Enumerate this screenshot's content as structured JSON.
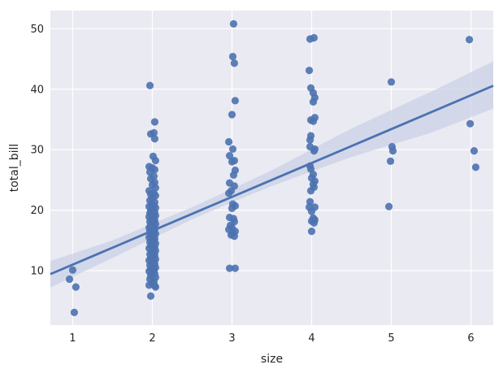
{
  "chart_data": {
    "type": "scatter",
    "title": "",
    "xlabel": "size",
    "ylabel": "total_bill",
    "xlim": [
      0.72,
      6.28
    ],
    "ylim": [
      1.0,
      53.0
    ],
    "x_ticks": [
      1,
      2,
      3,
      4,
      5,
      6
    ],
    "x_tick_labels": [
      "1",
      "2",
      "3",
      "4",
      "5",
      "6"
    ],
    "y_ticks": [
      10,
      20,
      30,
      40,
      50
    ],
    "y_tick_labels": [
      "10",
      "20",
      "30",
      "40",
      "50"
    ],
    "grid": true,
    "background": "#eaeaf2",
    "point_color": "#4c72b0",
    "line_color": "#4c72b0",
    "band_color": "#c9d2e5",
    "regression": {
      "slope": 5.6,
      "intercept": 5.4,
      "band_lower": [
        [
          0.72,
          7.2
        ],
        [
          1.5,
          12.1
        ],
        [
          2.5,
          18.5
        ],
        [
          3.0,
          21.3
        ],
        [
          3.5,
          24.0
        ],
        [
          4.5,
          28.8
        ],
        [
          5.5,
          32.8
        ],
        [
          6.28,
          36.8
        ]
      ],
      "band_upper": [
        [
          0.72,
          11.6
        ],
        [
          1.5,
          15.0
        ],
        [
          2.5,
          20.5
        ],
        [
          3.0,
          23.5
        ],
        [
          3.5,
          26.6
        ],
        [
          4.5,
          33.5
        ],
        [
          5.5,
          39.6
        ],
        [
          6.28,
          44.6
        ]
      ]
    },
    "points": [
      [
        0.96,
        8.6
      ],
      [
        1.0,
        10.1
      ],
      [
        1.02,
        3.1
      ],
      [
        1.04,
        7.3
      ],
      [
        1.97,
        40.6
      ],
      [
        2.03,
        34.6
      ],
      [
        1.98,
        32.6
      ],
      [
        2.02,
        32.8
      ],
      [
        2.03,
        31.8
      ],
      [
        2.01,
        28.9
      ],
      [
        2.04,
        28.2
      ],
      [
        1.96,
        27.2
      ],
      [
        2.0,
        27.0
      ],
      [
        2.03,
        26.7
      ],
      [
        1.97,
        26.3
      ],
      [
        2.02,
        25.6
      ],
      [
        1.98,
        25.2
      ],
      [
        2.03,
        24.6
      ],
      [
        2.0,
        24.2
      ],
      [
        2.04,
        23.7
      ],
      [
        1.96,
        23.2
      ],
      [
        2.02,
        22.8
      ],
      [
        1.98,
        22.6
      ],
      [
        2.04,
        22.4
      ],
      [
        2.0,
        22.0
      ],
      [
        1.97,
        21.6
      ],
      [
        2.03,
        21.3
      ],
      [
        1.99,
        21.0
      ],
      [
        2.02,
        20.8
      ],
      [
        1.96,
        20.6
      ],
      [
        2.04,
        20.4
      ],
      [
        2.0,
        20.2
      ],
      [
        1.98,
        19.9
      ],
      [
        2.03,
        19.7
      ],
      [
        1.97,
        19.5
      ],
      [
        2.01,
        19.3
      ],
      [
        2.04,
        19.1
      ],
      [
        1.96,
        18.9
      ],
      [
        2.02,
        18.7
      ],
      [
        1.99,
        18.5
      ],
      [
        2.03,
        18.3
      ],
      [
        1.97,
        18.1
      ],
      [
        2.0,
        17.9
      ],
      [
        2.04,
        17.7
      ],
      [
        1.98,
        17.5
      ],
      [
        2.02,
        17.3
      ],
      [
        1.96,
        17.1
      ],
      [
        2.03,
        16.9
      ],
      [
        2.0,
        16.7
      ],
      [
        1.97,
        16.5
      ],
      [
        2.02,
        16.3
      ],
      [
        2.04,
        16.1
      ],
      [
        1.98,
        15.9
      ],
      [
        2.01,
        15.7
      ],
      [
        1.96,
        15.5
      ],
      [
        2.03,
        15.3
      ],
      [
        1.99,
        15.1
      ],
      [
        2.02,
        14.9
      ],
      [
        1.97,
        14.7
      ],
      [
        2.04,
        14.5
      ],
      [
        2.0,
        14.3
      ],
      [
        1.98,
        14.1
      ],
      [
        2.03,
        13.9
      ],
      [
        1.96,
        13.7
      ],
      [
        2.01,
        13.5
      ],
      [
        2.04,
        13.3
      ],
      [
        1.99,
        13.1
      ],
      [
        2.02,
        12.9
      ],
      [
        1.97,
        12.7
      ],
      [
        2.03,
        12.5
      ],
      [
        2.0,
        12.3
      ],
      [
        1.98,
        12.1
      ],
      [
        2.04,
        11.9
      ],
      [
        1.96,
        11.7
      ],
      [
        2.02,
        11.5
      ],
      [
        1.99,
        11.3
      ],
      [
        2.03,
        11.1
      ],
      [
        1.97,
        10.9
      ],
      [
        2.01,
        10.7
      ],
      [
        2.04,
        10.5
      ],
      [
        1.98,
        10.3
      ],
      [
        2.02,
        10.1
      ],
      [
        1.96,
        9.9
      ],
      [
        2.0,
        9.7
      ],
      [
        2.03,
        9.5
      ],
      [
        1.98,
        9.2
      ],
      [
        2.04,
        8.9
      ],
      [
        1.97,
        8.6
      ],
      [
        2.02,
        8.2
      ],
      [
        2.0,
        7.9
      ],
      [
        1.96,
        7.6
      ],
      [
        2.04,
        7.3
      ],
      [
        2.03,
        7.5
      ],
      [
        1.98,
        5.8
      ],
      [
        3.02,
        50.8
      ],
      [
        3.01,
        45.4
      ],
      [
        3.03,
        44.3
      ],
      [
        3.04,
        38.1
      ],
      [
        3.0,
        35.8
      ],
      [
        2.96,
        31.3
      ],
      [
        3.01,
        30.1
      ],
      [
        2.97,
        29.0
      ],
      [
        3.03,
        28.2
      ],
      [
        3.0,
        28.0
      ],
      [
        3.04,
        26.6
      ],
      [
        3.02,
        25.8
      ],
      [
        2.97,
        24.5
      ],
      [
        3.03,
        24.0
      ],
      [
        2.99,
        23.2
      ],
      [
        2.96,
        22.8
      ],
      [
        3.01,
        21.0
      ],
      [
        3.04,
        20.7
      ],
      [
        3.0,
        20.3
      ],
      [
        2.97,
        18.8
      ],
      [
        3.02,
        18.6
      ],
      [
        3.03,
        18.1
      ],
      [
        2.98,
        17.5
      ],
      [
        3.0,
        17.1
      ],
      [
        2.96,
        16.8
      ],
      [
        3.04,
        16.5
      ],
      [
        3.01,
        16.2
      ],
      [
        2.99,
        15.9
      ],
      [
        3.03,
        15.7
      ],
      [
        2.97,
        10.4
      ],
      [
        3.04,
        10.4
      ],
      [
        3.98,
        48.3
      ],
      [
        4.03,
        48.5
      ],
      [
        3.97,
        43.1
      ],
      [
        3.99,
        40.2
      ],
      [
        4.02,
        39.4
      ],
      [
        4.04,
        38.6
      ],
      [
        4.02,
        37.9
      ],
      [
        4.04,
        35.3
      ],
      [
        3.99,
        34.9
      ],
      [
        4.02,
        34.7
      ],
      [
        3.99,
        32.3
      ],
      [
        3.98,
        31.6
      ],
      [
        3.98,
        30.5
      ],
      [
        4.04,
        30.1
      ],
      [
        4.03,
        29.8
      ],
      [
        3.98,
        27.3
      ],
      [
        3.99,
        26.8
      ],
      [
        4.02,
        25.9
      ],
      [
        4.0,
        25.3
      ],
      [
        4.04,
        24.8
      ],
      [
        4.02,
        24.3
      ],
      [
        4.03,
        23.8
      ],
      [
        3.99,
        23.2
      ],
      [
        3.98,
        21.4
      ],
      [
        3.97,
        20.5
      ],
      [
        4.04,
        20.5
      ],
      [
        4.0,
        19.8
      ],
      [
        4.02,
        18.7
      ],
      [
        4.04,
        18.4
      ],
      [
        4.0,
        18.2
      ],
      [
        4.03,
        17.9
      ],
      [
        4.0,
        16.5
      ],
      [
        5.0,
        41.2
      ],
      [
        5.01,
        30.5
      ],
      [
        5.02,
        29.8
      ],
      [
        4.99,
        28.1
      ],
      [
        4.97,
        20.6
      ],
      [
        5.98,
        48.2
      ],
      [
        5.99,
        34.3
      ],
      [
        6.04,
        29.8
      ],
      [
        6.06,
        27.1
      ]
    ]
  }
}
